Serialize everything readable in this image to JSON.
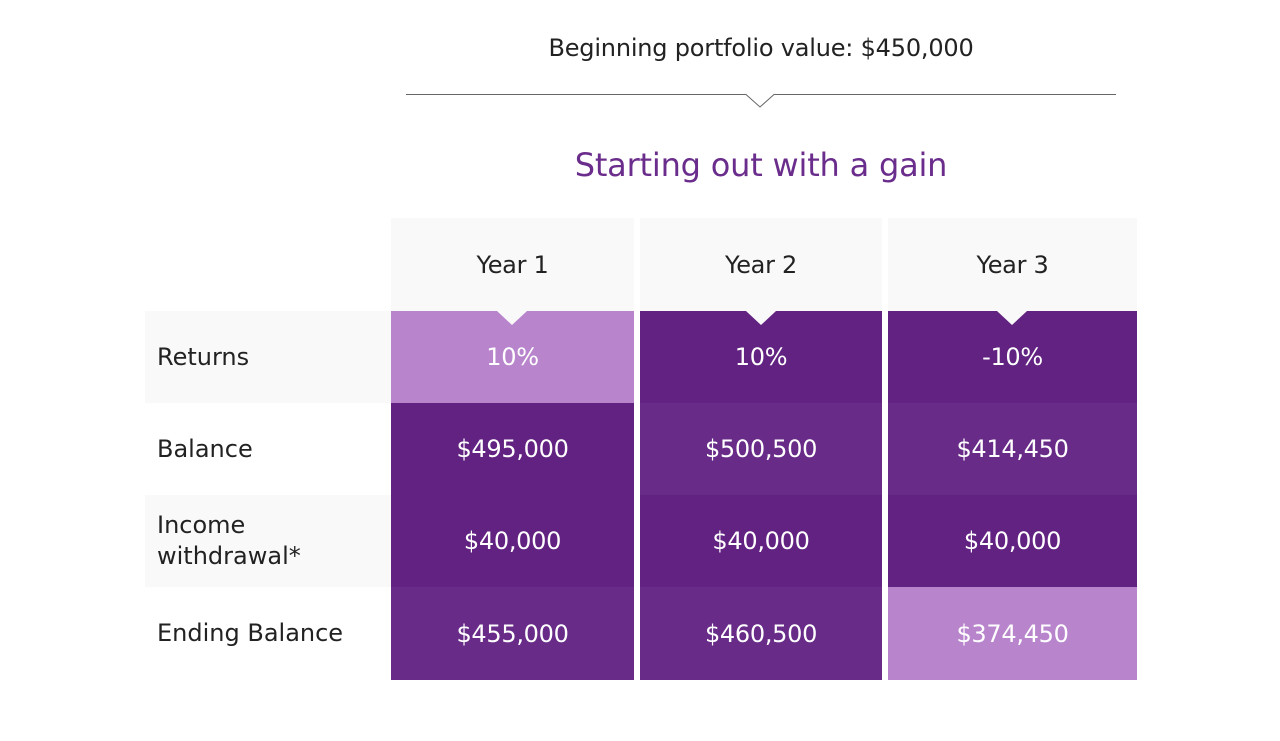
{
  "header": {
    "beginning_value": "Beginning portfolio value: $450,000",
    "section_title": "Starting out with a gain"
  },
  "table": {
    "columns": [
      "Year 1",
      "Year 2",
      "Year 3"
    ],
    "rows": [
      {
        "label": "Returns",
        "values": [
          "10%",
          "10%",
          "-10%"
        ]
      },
      {
        "label": "Balance",
        "values": [
          "$495,000",
          "$500,500",
          "$414,450"
        ]
      },
      {
        "label_line1": "Income",
        "label_line2": "withdrawal*",
        "values": [
          "$40,000",
          "$40,000",
          "$40,000"
        ]
      },
      {
        "label": "Ending Balance",
        "values": [
          "$455,000",
          "$460,500",
          "$374,450"
        ]
      }
    ]
  },
  "colors": {
    "accent": "#6b2d8c",
    "cell_dark": "#622281",
    "cell_mid": "#692b88",
    "cell_light": "#b884cc",
    "header_bg": "#f9f9f9",
    "text": "#222222"
  },
  "icons": {
    "divider_notch": "chevron-down-icon",
    "column_pointer": "pointer-down-icon"
  }
}
